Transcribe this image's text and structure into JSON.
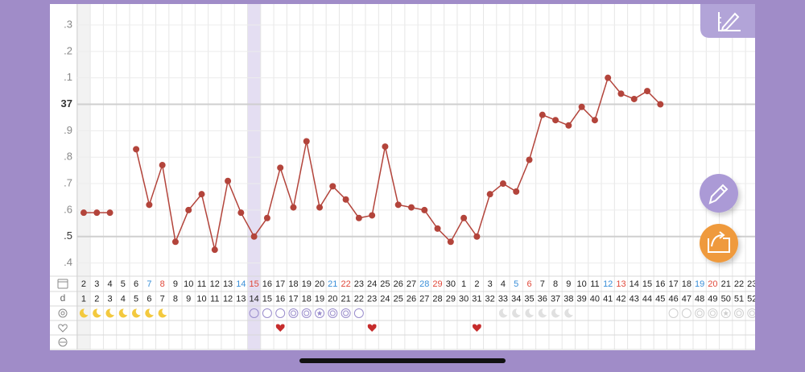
{
  "chart_data": {
    "type": "line",
    "categories": [
      "2",
      "3",
      "4",
      "5",
      "6",
      "7",
      "8",
      "9",
      "10",
      "11",
      "12",
      "13",
      "14",
      "15",
      "16",
      "17",
      "18",
      "19",
      "20",
      "21",
      "22",
      "23",
      "24",
      "25",
      "26",
      "27",
      "28",
      "29",
      "30",
      "1",
      "2",
      "3",
      "4",
      "5",
      "6",
      "7",
      "8",
      "9",
      "10",
      "11",
      "12",
      "13",
      "14",
      "15",
      "16",
      "17",
      "18",
      "19",
      "20",
      "21",
      "22",
      "23"
    ],
    "cycle_days": [
      1,
      2,
      3,
      4,
      5,
      6,
      7,
      8,
      9,
      10,
      11,
      12,
      13,
      14,
      15,
      16,
      17,
      18,
      19,
      20,
      21,
      22,
      23,
      24,
      25,
      26,
      27,
      28,
      29,
      30,
      31,
      32,
      33,
      34,
      35,
      36,
      37,
      38,
      39,
      40,
      41,
      42,
      43,
      44,
      45,
      46,
      47,
      48,
      49,
      50,
      51,
      52
    ],
    "day_label": "d",
    "series": [
      {
        "name": "Temperature",
        "color": "#b3443b",
        "values": [
          36.59,
          36.59,
          36.59,
          null,
          36.83,
          36.62,
          36.77,
          36.48,
          36.6,
          36.66,
          36.45,
          36.71,
          36.59,
          36.5,
          36.57,
          36.76,
          36.61,
          36.86,
          36.61,
          36.69,
          36.64,
          36.57,
          36.58,
          36.84,
          36.62,
          36.61,
          36.6,
          36.53,
          36.48,
          36.57,
          36.5,
          36.66,
          36.7,
          36.67,
          36.79,
          36.96,
          36.94,
          36.92,
          36.99,
          36.94,
          37.1,
          37.04,
          37.02,
          37.05,
          37.0,
          null,
          null,
          null,
          null,
          null,
          null,
          null
        ]
      }
    ],
    "ylim": [
      36.35,
      37.37
    ],
    "yticks": [
      {
        "value": 36.4,
        "label": ".4"
      },
      {
        "value": 36.5,
        "label": ".5"
      },
      {
        "value": 36.6,
        "label": ".6"
      },
      {
        "value": 36.7,
        "label": ".7"
      },
      {
        "value": 36.8,
        "label": ".8"
      },
      {
        "value": 36.9,
        "label": ".9"
      },
      37,
      {
        "value": 37.1,
        "label": ".1"
      },
      {
        "value": 37.2,
        "label": ".2"
      },
      {
        "value": 37.3,
        "label": ".3"
      }
    ],
    "strong_gridlines": [
      36.5,
      37
    ],
    "grid": true,
    "today_index": 13,
    "weekend": {
      "saturday": {
        "color": "#3a8fd8",
        "columns": [
          5,
          12,
          19,
          26,
          33,
          40,
          47
        ]
      },
      "sunday": {
        "color": "#e0483a",
        "columns": [
          6,
          13,
          20,
          27,
          34,
          41,
          48
        ]
      }
    },
    "symbols": [
      "moon",
      "moon",
      "moon",
      "moon",
      "moon",
      "moon",
      "moon",
      null,
      null,
      null,
      null,
      null,
      null,
      "circle",
      "circle",
      "circle",
      "double",
      "double",
      "star",
      "double",
      "double",
      "circle",
      null,
      null,
      null,
      null,
      null,
      null,
      null,
      null,
      null,
      null,
      "moon-pred",
      "moon-pred",
      "moon-pred",
      "moon-pred",
      "moon-pred",
      "moon-pred",
      null,
      null,
      null,
      null,
      null,
      null,
      null,
      "circle-pred",
      "circle-pred",
      "double-pred",
      "double-pred",
      "star-pred",
      "double-pred",
      "double-pred"
    ],
    "hearts": [
      15,
      22,
      30
    ]
  }
}
